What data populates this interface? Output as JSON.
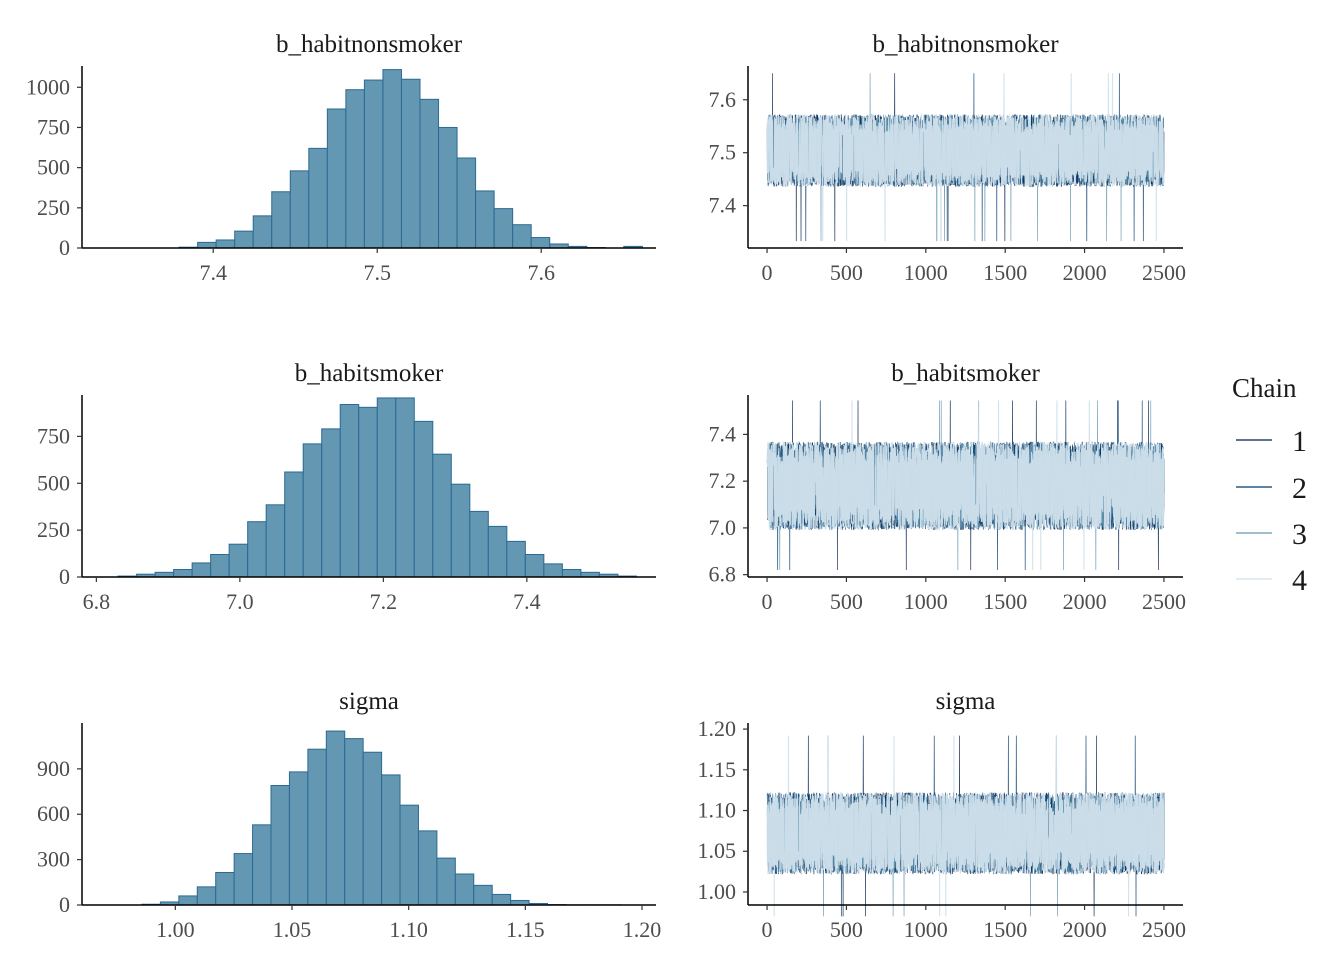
{
  "chart_data": [
    {
      "type": "bar",
      "subtype": "histogram",
      "title": "b_habitnonsmoker",
      "xlim": [
        7.32,
        7.67
      ],
      "ylim": [
        0,
        1120
      ],
      "xticks": [
        7.4,
        7.5,
        7.6
      ],
      "xtick_labels": [
        "7.4",
        "7.5",
        "7.6"
      ],
      "yticks": [
        0,
        250,
        500,
        750,
        1000
      ],
      "ytick_labels": [
        "0",
        "250",
        "500",
        "750",
        "1000"
      ],
      "bin_width": 0.0113,
      "bin_starts": [
        7.3792,
        7.3905,
        7.4018,
        7.4131,
        7.4244,
        7.4357,
        7.447,
        7.4583,
        7.4696,
        7.4809,
        7.4922,
        7.5035,
        7.5148,
        7.5261,
        7.5374,
        7.5487,
        7.56,
        7.5713,
        7.5826,
        7.5939,
        7.6052,
        7.6165,
        7.6278,
        7.6391,
        7.6504
      ],
      "counts": [
        5,
        35,
        50,
        105,
        200,
        350,
        480,
        620,
        865,
        985,
        1045,
        1110,
        1050,
        925,
        750,
        560,
        355,
        245,
        145,
        65,
        25,
        10,
        3,
        0,
        10
      ],
      "fill": "#6497b1",
      "edge": "#2b6a94"
    },
    {
      "type": "line",
      "subtype": "trace",
      "title": "b_habitnonsmoker",
      "xlim": [
        -120,
        2620
      ],
      "ylim": [
        7.32,
        7.66
      ],
      "xticks": [
        0,
        500,
        1000,
        1500,
        2000,
        2500
      ],
      "xtick_labels": [
        "0",
        "500",
        "1000",
        "1500",
        "2000",
        "2500"
      ],
      "yticks": [
        7.4,
        7.5,
        7.6
      ],
      "ytick_labels": [
        "7.4",
        "7.5",
        "7.6"
      ],
      "iterations": 2500,
      "center": 7.504,
      "spread": 0.038,
      "min_spike": 7.333,
      "max_spike": 7.65,
      "seed": 11
    },
    {
      "type": "bar",
      "subtype": "histogram",
      "title": "b_habitsmoker",
      "xlim": [
        6.78,
        7.58
      ],
      "ylim": [
        0,
        960
      ],
      "xticks": [
        6.8,
        7.0,
        7.2,
        7.4
      ],
      "xtick_labels": [
        "6.8",
        "7.0",
        "7.2",
        "7.4"
      ],
      "yticks": [
        0,
        250,
        500,
        750
      ],
      "ytick_labels": [
        "0",
        "250",
        "500",
        "750"
      ],
      "bin_width": 0.0258,
      "bin_starts": [
        6.8303,
        6.8561,
        6.8819,
        6.9077,
        6.9335,
        6.9593,
        6.9851,
        7.0109,
        7.0367,
        7.0625,
        7.0883,
        7.1141,
        7.1399,
        7.1657,
        7.1915,
        7.2173,
        7.2431,
        7.2689,
        7.2947,
        7.3205,
        7.3463,
        7.3721,
        7.3979,
        7.4237,
        7.4495,
        7.4753,
        7.5011,
        7.5269
      ],
      "counts": [
        5,
        15,
        25,
        40,
        75,
        120,
        175,
        295,
        385,
        560,
        710,
        790,
        920,
        905,
        955,
        955,
        830,
        655,
        495,
        350,
        270,
        190,
        120,
        70,
        40,
        25,
        15,
        5
      ],
      "fill": "#6497b1",
      "edge": "#2b6a94"
    },
    {
      "type": "line",
      "subtype": "trace",
      "title": "b_habitsmoker",
      "xlim": [
        -120,
        2620
      ],
      "ylim": [
        6.79,
        7.56
      ],
      "xticks": [
        0,
        500,
        1000,
        1500,
        2000,
        2500
      ],
      "xtick_labels": [
        "0",
        "500",
        "1000",
        "1500",
        "2000",
        "2500"
      ],
      "yticks": [
        6.8,
        7.0,
        7.2,
        7.4
      ],
      "ytick_labels": [
        "6.8",
        "7.0",
        "7.2",
        "7.4"
      ],
      "iterations": 2500,
      "center": 7.18,
      "spread": 0.105,
      "min_spike": 6.82,
      "max_spike": 7.545,
      "seed": 23
    },
    {
      "type": "bar",
      "subtype": "histogram",
      "title": "sigma",
      "xlim": [
        0.96,
        1.206
      ],
      "ylim": [
        0,
        1190
      ],
      "xticks": [
        1.0,
        1.05,
        1.1,
        1.15,
        1.2
      ],
      "xtick_labels": [
        "1.00",
        "1.05",
        "1.10",
        "1.15",
        "1.20"
      ],
      "yticks": [
        0,
        300,
        600,
        900
      ],
      "ytick_labels": [
        "0",
        "300",
        "600",
        "900"
      ],
      "bin_width": 0.0079,
      "bin_starts": [
        0.9857,
        0.9936,
        1.0015,
        1.0094,
        1.0173,
        1.0252,
        1.0331,
        1.041,
        1.0489,
        1.0568,
        1.0647,
        1.0726,
        1.0805,
        1.0884,
        1.0963,
        1.1042,
        1.1121,
        1.12,
        1.1279,
        1.1358,
        1.1437,
        1.1516,
        1.1595,
        1.1674,
        1.1753,
        1.1832
      ],
      "counts": [
        5,
        20,
        60,
        120,
        215,
        340,
        530,
        790,
        880,
        1030,
        1150,
        1100,
        1010,
        860,
        660,
        490,
        310,
        205,
        130,
        70,
        30,
        10,
        3,
        1,
        1,
        1
      ],
      "fill": "#6497b1",
      "edge": "#2b6a94"
    },
    {
      "type": "line",
      "subtype": "trace",
      "title": "sigma",
      "xlim": [
        -120,
        2620
      ],
      "ylim": [
        0.984,
        1.205
      ],
      "xticks": [
        0,
        500,
        1000,
        1500,
        2000,
        2500
      ],
      "xtick_labels": [
        "0",
        "500",
        "1000",
        "1500",
        "2000",
        "2500"
      ],
      "yticks": [
        1.0,
        1.05,
        1.1,
        1.15,
        1.2
      ],
      "ytick_labels": [
        "1.00",
        "1.05",
        "1.10",
        "1.15",
        "1.20"
      ],
      "iterations": 2500,
      "center": 1.072,
      "spread": 0.028,
      "min_spike": 0.97,
      "max_spike": 1.192,
      "seed": 37
    }
  ],
  "legend": {
    "title": "Chain",
    "items": [
      {
        "label": "1",
        "color": "#011f4b"
      },
      {
        "label": "2",
        "color": "#03396c"
      },
      {
        "label": "3",
        "color": "#6497b1"
      },
      {
        "label": "4",
        "color": "#d1e1ec"
      }
    ]
  }
}
